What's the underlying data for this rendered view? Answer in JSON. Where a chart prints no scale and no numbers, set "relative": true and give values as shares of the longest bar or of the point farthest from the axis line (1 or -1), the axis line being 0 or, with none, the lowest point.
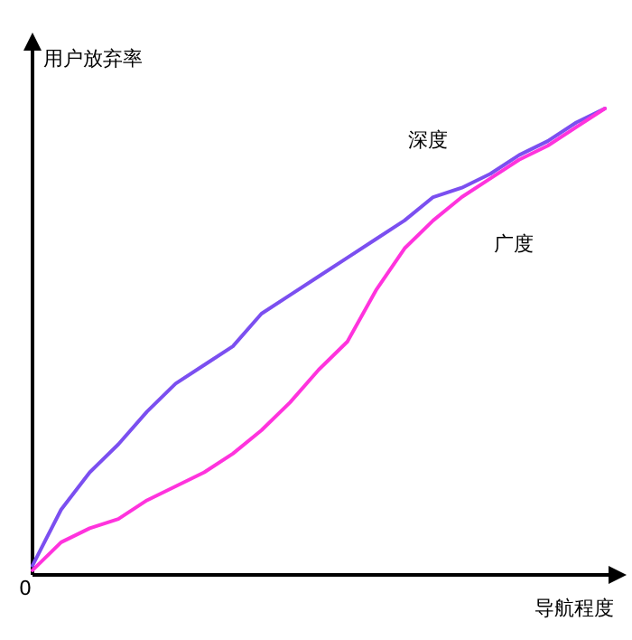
{
  "chart_data": {
    "type": "line",
    "relative": true,
    "xlabel": "导航程度",
    "ylabel": "用户放弃率",
    "annotations": [
      "0"
    ],
    "categories": [
      null,
      null,
      null,
      null,
      null,
      null,
      null,
      null,
      null,
      null,
      null,
      null,
      null,
      null,
      null,
      null,
      null,
      null,
      null,
      null,
      null
    ],
    "series": [
      {
        "name": "深度",
        "color": "#7b4ff0",
        "values": [
          0.02,
          0.14,
          0.22,
          0.28,
          0.35,
          0.41,
          0.45,
          0.49,
          0.56,
          0.6,
          0.64,
          0.68,
          0.72,
          0.76,
          0.81,
          0.83,
          0.86,
          0.9,
          0.93,
          0.97,
          1
        ]
      },
      {
        "name": "广度",
        "color": "#ff33dd",
        "values": [
          0.01,
          0.07,
          0.1,
          0.12,
          0.16,
          0.19,
          0.22,
          0.26,
          0.31,
          0.37,
          0.44,
          0.5,
          0.61,
          0.7,
          0.76,
          0.81,
          0.85,
          0.89,
          0.92,
          0.96,
          1
        ]
      }
    ]
  }
}
